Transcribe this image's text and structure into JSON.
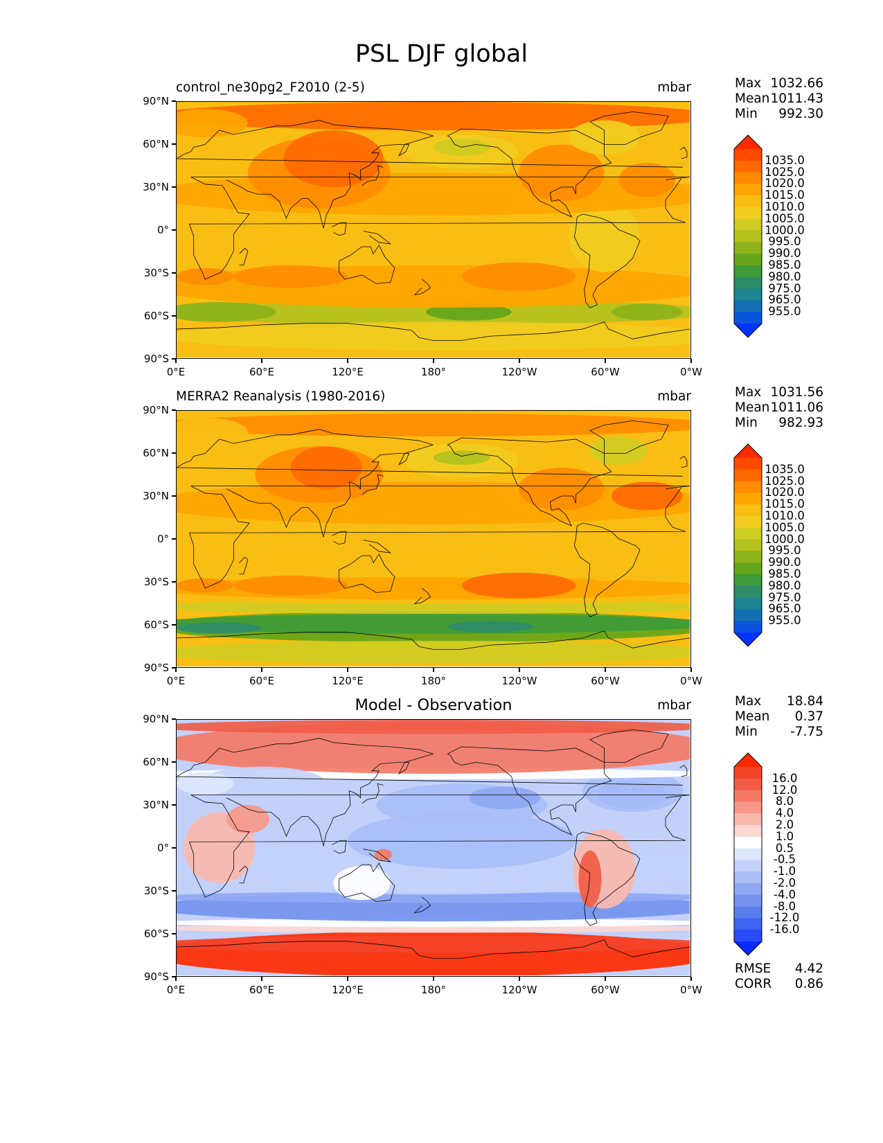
{
  "figure": {
    "title": "PSL DJF global"
  },
  "axes": {
    "lat_ticks": [
      "90°N",
      "60°N",
      "30°N",
      "0°",
      "30°S",
      "60°S",
      "90°S"
    ],
    "lon_ticks": [
      "0°E",
      "60°E",
      "120°E",
      "180°",
      "120°W",
      "60°W",
      "0°W"
    ]
  },
  "panels": [
    {
      "title": "control_ne30pg2_F2010 (2-5)",
      "title_position": "left",
      "units": "mbar",
      "stats": [
        {
          "label": "Max",
          "value": "1032.66"
        },
        {
          "label": "Mean",
          "value": "1011.43"
        },
        {
          "label": "Min",
          "value": "992.30"
        }
      ],
      "colorbar_labels": [
        "1035.0",
        "1025.0",
        "1020.0",
        "1015.0",
        "1010.0",
        "1005.0",
        "1000.0",
        "995.0",
        "990.0",
        "985.0",
        "980.0",
        "975.0",
        "965.0",
        "955.0"
      ],
      "colorbar_colors": [
        "#ff2a00",
        "#ff4a00",
        "#ff6a00",
        "#ff8c00",
        "#ffa500",
        "#f9be13",
        "#f0cd20",
        "#cfcc22",
        "#b3c21d",
        "#8db21a",
        "#64a51a",
        "#3f9a38",
        "#2f8c69",
        "#1c8590",
        "#146fb2",
        "#0a55dd",
        "#0033ff"
      ],
      "field": "control"
    },
    {
      "title": "MERRA2 Reanalysis (1980-2016)",
      "title_position": "left",
      "units": "mbar",
      "stats": [
        {
          "label": "Max",
          "value": "1031.56"
        },
        {
          "label": "Mean",
          "value": "1011.06"
        },
        {
          "label": "Min",
          "value": "982.93"
        }
      ],
      "colorbar_labels": [
        "1035.0",
        "1025.0",
        "1020.0",
        "1015.0",
        "1010.0",
        "1005.0",
        "1000.0",
        "995.0",
        "990.0",
        "985.0",
        "980.0",
        "975.0",
        "965.0",
        "955.0"
      ],
      "colorbar_colors": [
        "#ff2a00",
        "#ff4a00",
        "#ff6a00",
        "#ff8c00",
        "#ffa500",
        "#f9be13",
        "#f0cd20",
        "#cfcc22",
        "#b3c21d",
        "#8db21a",
        "#64a51a",
        "#3f9a38",
        "#2f8c69",
        "#1c8590",
        "#146fb2",
        "#0a55dd",
        "#0033ff"
      ],
      "field": "merra"
    },
    {
      "title": "Model - Observation",
      "title_position": "center",
      "units": "mbar",
      "stats": [
        {
          "label": "Max",
          "value": "18.84"
        },
        {
          "label": "Mean",
          "value": "0.37"
        },
        {
          "label": "Min",
          "value": "-7.75"
        }
      ],
      "colorbar_labels": [
        "16.0",
        "12.0",
        "8.0",
        "4.0",
        "2.0",
        "1.0",
        "0.5",
        "-0.5",
        "-1.0",
        "-2.0",
        "-4.0",
        "-8.0",
        "-12.0",
        "-16.0"
      ],
      "colorbar_colors": [
        "#ff2a00",
        "#f3442a",
        "#f05c45",
        "#f47a66",
        "#f7988a",
        "#fab8ad",
        "#fcd8d2",
        "#ffffff",
        "#dde6fb",
        "#c3d1fa",
        "#a9bdf7",
        "#8fa8f3",
        "#7593ee",
        "#5a7ee9",
        "#3e64f0",
        "#2a49f7",
        "#0a2aff"
      ],
      "extra_stats": [
        {
          "label": "RMSE",
          "value": "4.42"
        },
        {
          "label": "CORR",
          "value": "0.86"
        }
      ],
      "field": "diff"
    }
  ]
}
